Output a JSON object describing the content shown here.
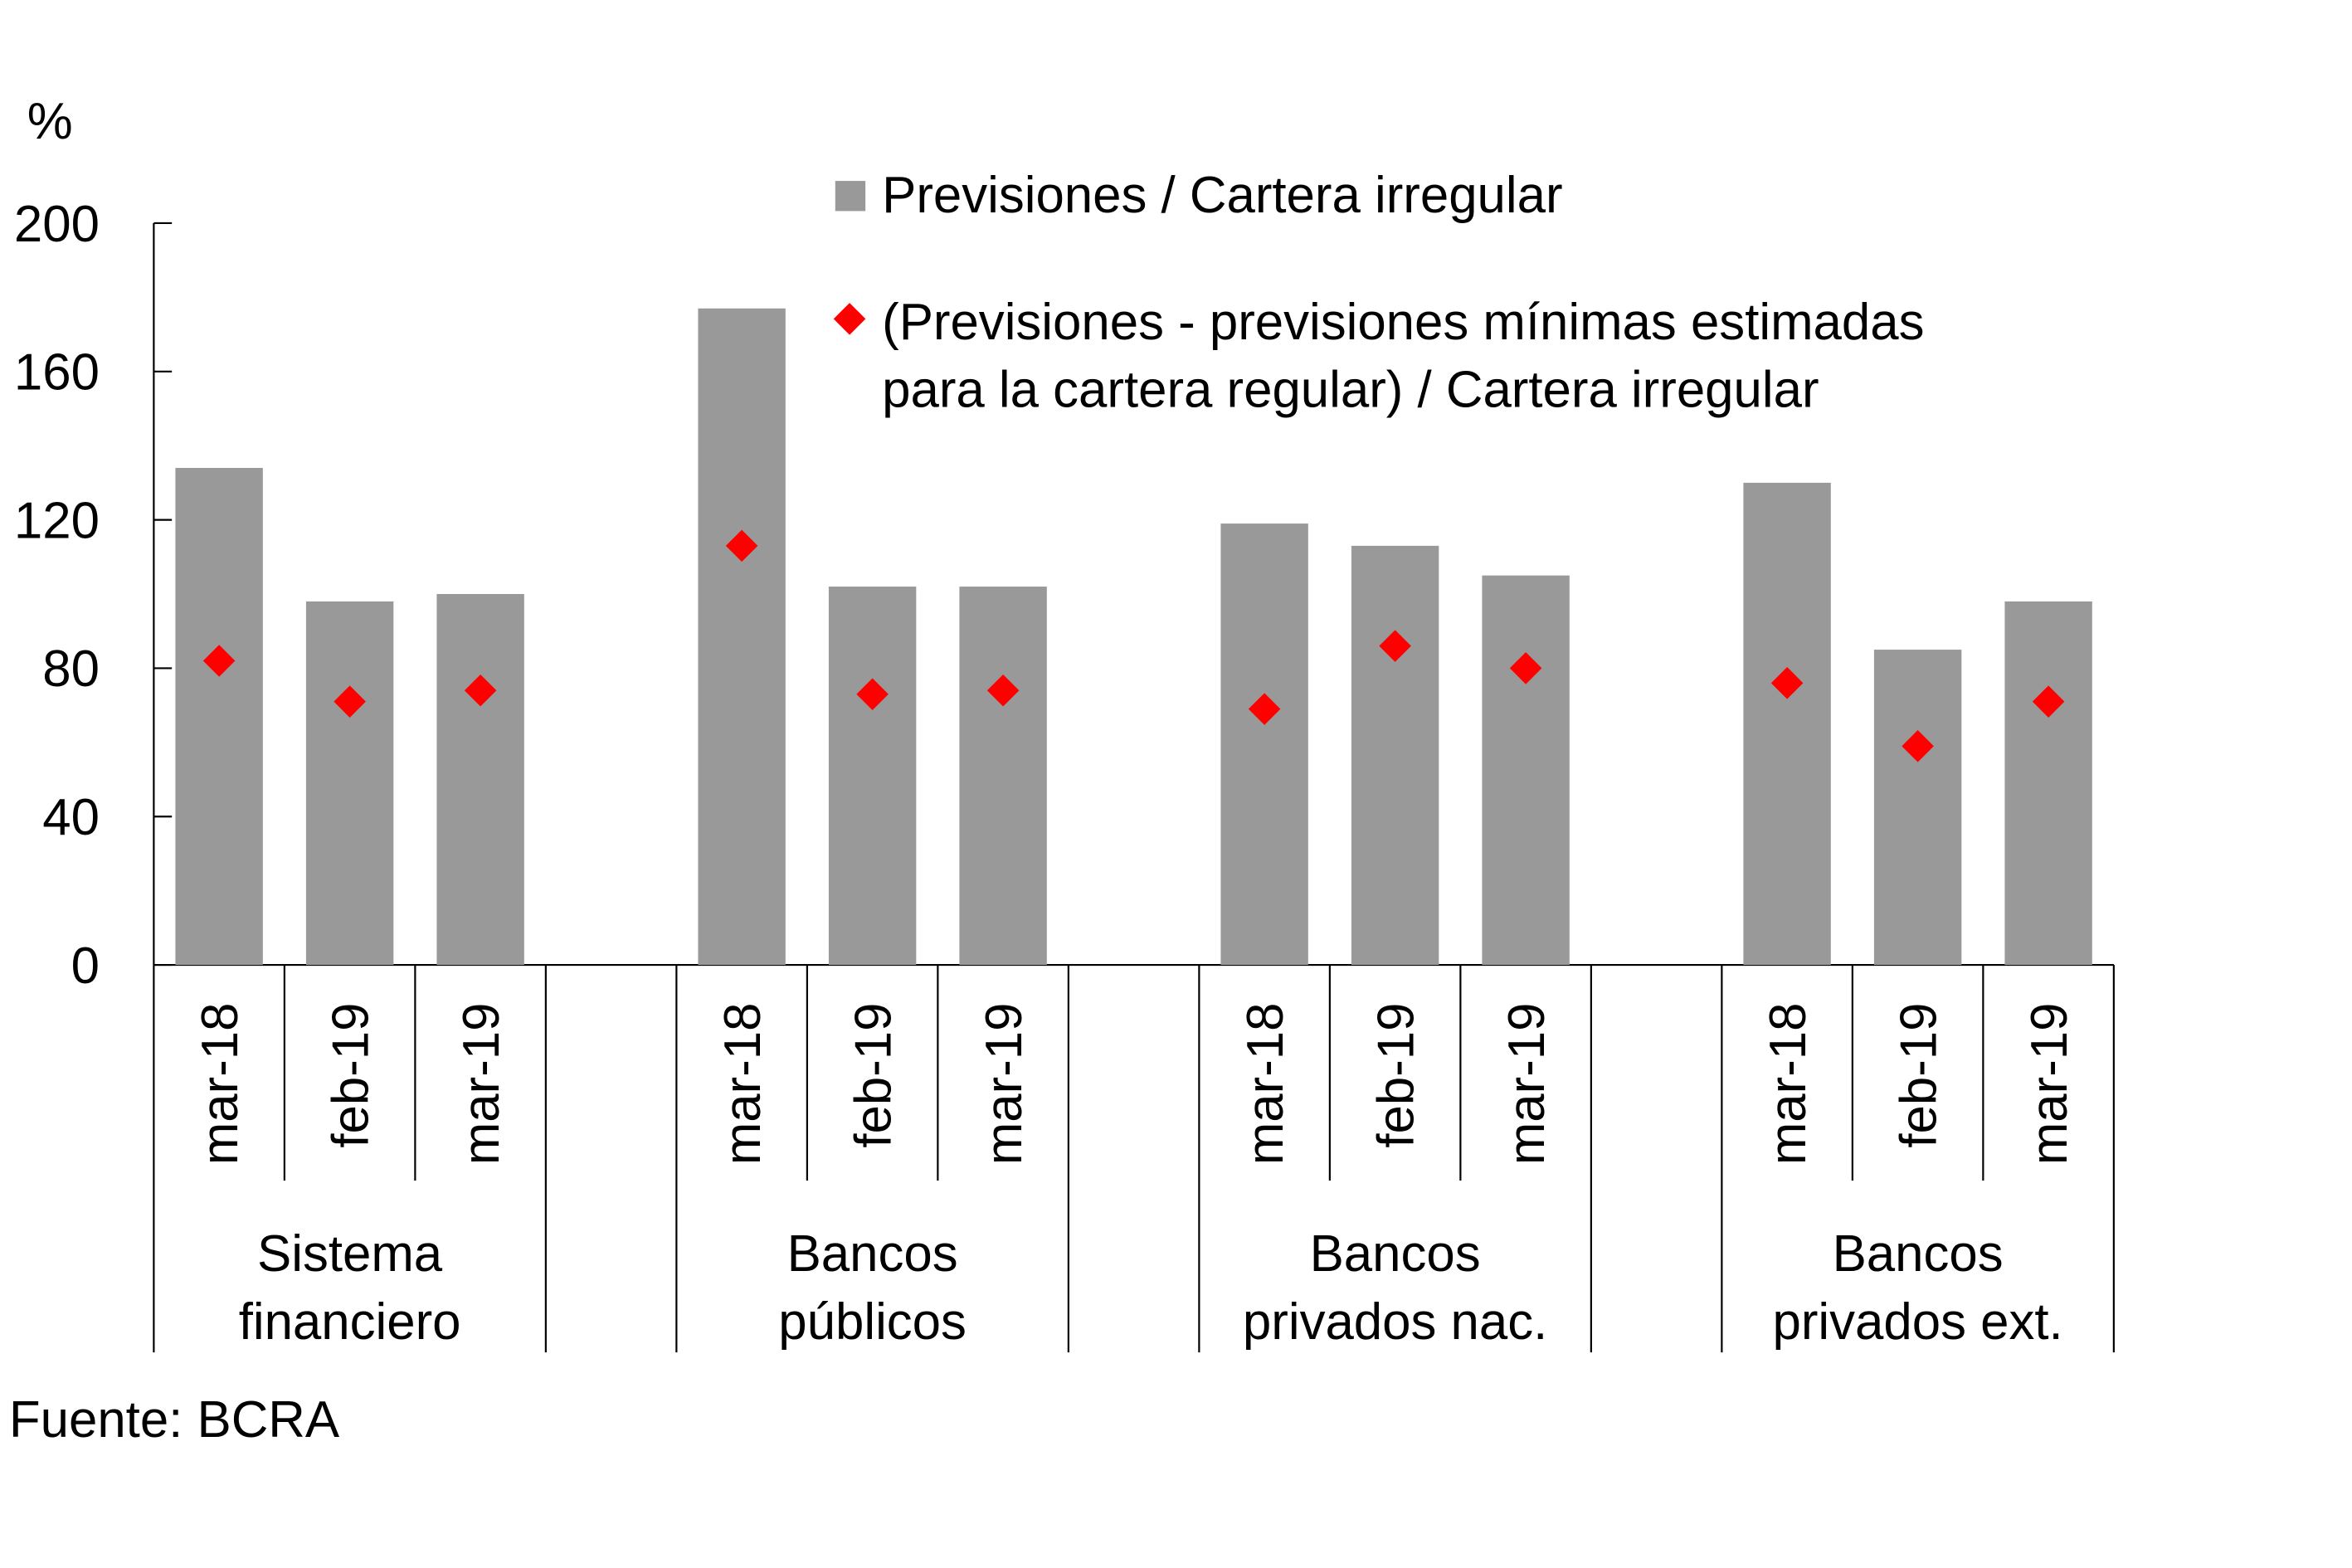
{
  "chart_data": {
    "type": "bar",
    "ylabel": "%",
    "ylim": [
      0,
      200
    ],
    "yticks": [
      0,
      40,
      80,
      120,
      160,
      200
    ],
    "grid": false,
    "legend_placement": "top-right",
    "groups": [
      {
        "label_lines": [
          "Sistema",
          "financiero"
        ],
        "categories": [
          "mar-18",
          "feb-19",
          "mar-19"
        ]
      },
      {
        "label_lines": [
          "Bancos",
          "públicos"
        ],
        "categories": [
          "mar-18",
          "feb-19",
          "mar-19"
        ]
      },
      {
        "label_lines": [
          "Bancos",
          "privados nac."
        ],
        "categories": [
          "mar-18",
          "feb-19",
          "mar-19"
        ]
      },
      {
        "label_lines": [
          "Bancos",
          "privados ext."
        ],
        "categories": [
          "mar-18",
          "feb-19",
          "mar-19"
        ]
      }
    ],
    "series": [
      {
        "name": "Previsiones / Cartera irregular",
        "kind": "bar",
        "color": "#999999",
        "values": [
          134,
          98,
          100,
          177,
          102,
          102,
          119,
          113,
          105,
          130,
          85,
          98
        ]
      },
      {
        "name_lines": [
          "(Previsiones - previsiones mínimas estimadas",
          "para la cartera regular) / Cartera irregular"
        ],
        "kind": "marker",
        "color": "#ff0000",
        "values": [
          82,
          71,
          74,
          113,
          73,
          74,
          69,
          86,
          80,
          76,
          59,
          71
        ]
      }
    ],
    "source": "Fuente: BCRA"
  }
}
